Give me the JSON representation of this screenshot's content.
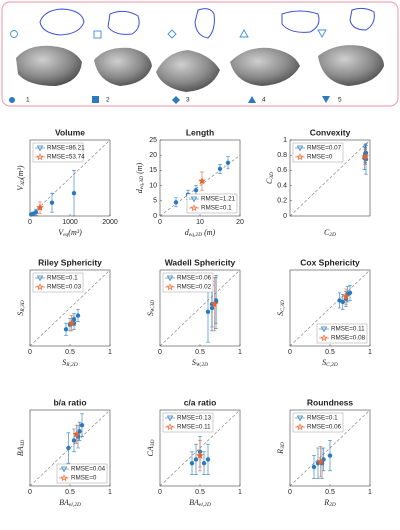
{
  "panel": {
    "labels": [
      "1",
      "2",
      "3",
      "4",
      "5"
    ]
  },
  "chart_data": [
    {
      "type": "scatter",
      "title": "Volume",
      "xlabel": {
        "main": "V",
        "sub": "eq",
        "tail": "(m³)"
      },
      "ylabel": {
        "main": "V",
        "sub": "3D",
        "tail": "(m³)"
      },
      "xlim": [
        0,
        2000
      ],
      "ylim": [
        0,
        2000
      ],
      "xticks": [
        0,
        1000,
        2000
      ],
      "legend": "upper left",
      "series": [
        {
          "name": "RMSE=86.21",
          "color": "#2a7abf",
          "x": [
            30,
            80,
            150,
            550,
            1100
          ],
          "values": [
            40,
            60,
            100,
            350,
            600
          ],
          "errors": [
            30,
            40,
            80,
            250,
            600
          ]
        },
        {
          "name": "RMSE=53.74",
          "color": "#e8642c",
          "x": [
            250
          ],
          "values": [
            220
          ],
          "errors": [
            150
          ]
        }
      ]
    },
    {
      "type": "scatter",
      "title": "Length",
      "xlabel": {
        "main": "d",
        "sub": "eq,2D",
        "tail": " (m)"
      },
      "ylabel": {
        "main": "d",
        "sub": "eq,3D",
        "tail": " (m)"
      },
      "xlim": [
        0,
        20
      ],
      "ylim": [
        0,
        25
      ],
      "xticks": [
        0,
        10,
        20
      ],
      "yticks": [
        0,
        5,
        10,
        15,
        20,
        25
      ],
      "legend": "lower right",
      "series": [
        {
          "name": "RMSE=1.21",
          "color": "#2a7abf",
          "x": [
            4,
            7,
            9,
            15,
            17
          ],
          "values": [
            4.5,
            7,
            8.5,
            15.5,
            17.5
          ],
          "errors": [
            1.5,
            1.5,
            1.5,
            1.5,
            2
          ]
        },
        {
          "name": "RMSE=0.1",
          "color": "#e8642c",
          "x": [
            10.5
          ],
          "values": [
            11.5
          ],
          "errors": [
            3
          ]
        }
      ]
    },
    {
      "type": "scatter",
      "title": "Convexity",
      "xlabel": {
        "main": "C",
        "sub": "2D"
      },
      "ylabel": {
        "main": "C",
        "sub": "3D"
      },
      "xlim": [
        0,
        1
      ],
      "ylim": [
        0,
        1
      ],
      "yticks": [
        0,
        0.2,
        0.4,
        0.6,
        0.8,
        1
      ],
      "legend": "upper left",
      "series": [
        {
          "name": "RMSE=0.07",
          "color": "#2a7abf",
          "x": [
            0.93,
            0.94,
            0.94,
            0.95,
            0.95
          ],
          "values": [
            0.76,
            0.8,
            0.82,
            0.75,
            0.83
          ],
          "errors": [
            0.15,
            0.1,
            0.12,
            0.2,
            0.1
          ]
        },
        {
          "name": "RMSE=0",
          "color": "#e8642c",
          "x": [
            0.94
          ],
          "values": [
            0.78
          ],
          "errors": [
            0.1
          ]
        }
      ]
    },
    {
      "type": "scatter",
      "title": "Riley Sphericity",
      "xlabel": {
        "main": "S",
        "sub": "R,2D"
      },
      "ylabel": {
        "main": "S",
        "sub": "R,3D"
      },
      "xlim": [
        0,
        1
      ],
      "ylim": [
        0,
        1
      ],
      "xticks": [
        0,
        0.5,
        1
      ],
      "legend": "upper left",
      "series": [
        {
          "name": "RMSE=0.1",
          "color": "#2a7abf",
          "x": [
            0.45,
            0.5,
            0.55,
            0.55,
            0.6
          ],
          "values": [
            0.22,
            0.28,
            0.3,
            0.35,
            0.4
          ],
          "errors": [
            0.08,
            0.08,
            0.08,
            0.08,
            0.08
          ]
        },
        {
          "name": "RMSE=0.03",
          "color": "#e8642c",
          "x": [
            0.52
          ],
          "values": [
            0.3
          ],
          "errors": [
            0.1
          ]
        }
      ]
    },
    {
      "type": "scatter",
      "title": "Wadell Sphericity",
      "xlabel": {
        "main": "S",
        "sub": "W,2D"
      },
      "ylabel": {
        "main": "S",
        "sub": "W,3D"
      },
      "xlim": [
        0,
        1
      ],
      "ylim": [
        0,
        1
      ],
      "xticks": [
        0,
        0.5,
        1
      ],
      "legend": "upper left",
      "series": [
        {
          "name": "RMSE=0.06",
          "color": "#2a7abf",
          "x": [
            0.6,
            0.65,
            0.65,
            0.7,
            0.7
          ],
          "values": [
            0.45,
            0.5,
            0.55,
            0.58,
            0.6
          ],
          "errors": [
            0.4,
            0.3,
            0.3,
            0.35,
            0.3
          ]
        },
        {
          "name": "RMSE=0.02",
          "color": "#e8642c",
          "x": [
            0.68
          ],
          "values": [
            0.55
          ],
          "errors": [
            0.35
          ]
        }
      ]
    },
    {
      "type": "scatter",
      "title": "Cox Sphericity",
      "xlabel": {
        "main": "S",
        "sub": "C,2D"
      },
      "ylabel": {
        "main": "S",
        "sub": "C,3D"
      },
      "xlim": [
        0,
        1
      ],
      "ylim": [
        0,
        1
      ],
      "xticks": [
        0,
        0.5,
        1
      ],
      "legend": "lower right",
      "series": [
        {
          "name": "RMSE=0.11",
          "color": "#2a7abf",
          "x": [
            0.62,
            0.66,
            0.7,
            0.72,
            0.75
          ],
          "values": [
            0.6,
            0.58,
            0.62,
            0.68,
            0.7
          ],
          "errors": [
            0.1,
            0.1,
            0.1,
            0.1,
            0.1
          ]
        },
        {
          "name": "RMSE=0.08",
          "color": "#e8642c",
          "x": [
            0.7
          ],
          "values": [
            0.65
          ],
          "errors": [
            0.1
          ]
        }
      ]
    },
    {
      "type": "scatter",
      "title": "b/a ratio",
      "xlabel": {
        "main": "BA",
        "sub": "el,2D"
      },
      "ylabel": {
        "main": "BA",
        "sub": "3D"
      },
      "xlim": [
        0,
        1
      ],
      "ylim": [
        0,
        1
      ],
      "xticks": [
        0,
        0.5,
        1
      ],
      "legend": "lower right",
      "series": [
        {
          "name": "RMSE=0.04",
          "color": "#2a7abf",
          "x": [
            0.48,
            0.55,
            0.6,
            0.62,
            0.65
          ],
          "values": [
            0.5,
            0.6,
            0.65,
            0.72,
            0.8
          ],
          "errors": [
            0.2,
            0.15,
            0.15,
            0.12,
            0.15
          ]
        },
        {
          "name": "RMSE=0",
          "color": "#e8642c",
          "x": [
            0.58
          ],
          "values": [
            0.68
          ],
          "errors": [
            0.12
          ]
        }
      ]
    },
    {
      "type": "scatter",
      "title": "c/a ratio",
      "xlabel": {
        "main": "BA",
        "sub": "el,2D"
      },
      "ylabel": {
        "main": "CA",
        "sub": "3D"
      },
      "xlim": [
        0,
        1
      ],
      "ylim": [
        0,
        1
      ],
      "xticks": [
        0,
        0.5,
        1
      ],
      "legend": "upper left",
      "series": [
        {
          "name": "RMSE=0.13",
          "color": "#2a7abf",
          "x": [
            0.4,
            0.45,
            0.5,
            0.55,
            0.6
          ],
          "values": [
            0.3,
            0.35,
            0.45,
            0.3,
            0.35
          ],
          "errors": [
            0.15,
            0.2,
            0.2,
            0.15,
            0.2
          ]
        },
        {
          "name": "RMSE=0.11",
          "color": "#e8642c",
          "x": [
            0.5
          ],
          "values": [
            0.4
          ],
          "errors": [
            0.2
          ]
        }
      ]
    },
    {
      "type": "scatter",
      "title": "Roundness",
      "xlabel": {
        "main": "R",
        "sub": "2D"
      },
      "ylabel": {
        "main": "R",
        "sub": "3D"
      },
      "xlim": [
        0,
        1
      ],
      "ylim": [
        0,
        1
      ],
      "xticks": [
        0,
        0.5,
        1
      ],
      "legend": "upper left",
      "series": [
        {
          "name": "RMSE=0.1",
          "color": "#2a7abf",
          "x": [
            0.3,
            0.35,
            0.4,
            0.42,
            0.5
          ],
          "values": [
            0.25,
            0.3,
            0.3,
            0.35,
            0.4
          ],
          "errors": [
            0.15,
            0.2,
            0.2,
            0.15,
            0.2
          ]
        },
        {
          "name": "RMSE=0.06",
          "color": "#e8642c",
          "x": [
            0.38
          ],
          "values": [
            0.32
          ],
          "errors": [
            0.2
          ]
        }
      ]
    }
  ]
}
